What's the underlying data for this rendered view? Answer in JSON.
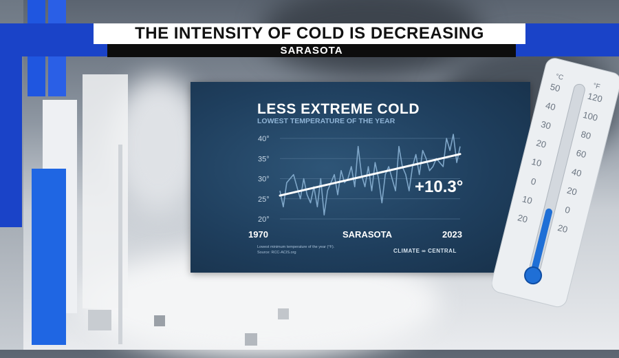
{
  "banner": {
    "headline": "THE INTENSITY OF COLD IS DECREASING",
    "subhead": "SARASOTA"
  },
  "colors": {
    "banner_blue": "#1a43c8",
    "panel_bg": "#1f3f5e",
    "series_line": "#7fa7c9",
    "trend_line": "#ffffff",
    "thermometer_fill": "#1f6fd6"
  },
  "chart_data": {
    "type": "line",
    "title": "LESS EXTREME COLD",
    "subtitle": "LOWEST TEMPERATURE OF THE YEAR",
    "location_label": "SARASOTA",
    "x_start_label": "1970",
    "x_end_label": "2023",
    "xlim": [
      1970,
      2023
    ],
    "ylim": [
      20,
      40
    ],
    "y_ticks": [
      "40°",
      "35°",
      "30°",
      "25°",
      "20°"
    ],
    "y_tick_values": [
      40,
      35,
      30,
      25,
      20
    ],
    "grid": true,
    "annotation": "+10.3°",
    "footnote_1": "Lowest minimum temperature of the year (°F).",
    "footnote_2": "Source: RCC-ACIS.org",
    "brand": "CLIMATE ∞ CENTRAL",
    "series": [
      {
        "x": [
          1970,
          1971,
          1972,
          1973,
          1974,
          1975,
          1976,
          1977,
          1978,
          1979,
          1980,
          1981,
          1982,
          1983,
          1984,
          1985,
          1986,
          1987,
          1988,
          1989,
          1990,
          1991,
          1992,
          1993,
          1994,
          1995,
          1996,
          1997,
          1998,
          1999,
          2000,
          2001,
          2002,
          2003,
          2004,
          2005,
          2006,
          2007,
          2008,
          2009,
          2010,
          2011,
          2012,
          2013,
          2014,
          2015,
          2016,
          2017,
          2018,
          2019,
          2020,
          2021,
          2022,
          2023
        ],
        "values": [
          27,
          23,
          29,
          30,
          31,
          28,
          25,
          30,
          26,
          24,
          28,
          23,
          30,
          21,
          27,
          29,
          31,
          26,
          32,
          29,
          30,
          33,
          28,
          38,
          31,
          28,
          33,
          27,
          34,
          30,
          24,
          31,
          33,
          30,
          27,
          38,
          33,
          31,
          27,
          33,
          36,
          31,
          37,
          35,
          32,
          33,
          35,
          34,
          33,
          40,
          37,
          41,
          34,
          38
        ]
      }
    ],
    "trend": {
      "x": [
        1970,
        2023
      ],
      "y": [
        25.8,
        36.1
      ]
    }
  }
}
